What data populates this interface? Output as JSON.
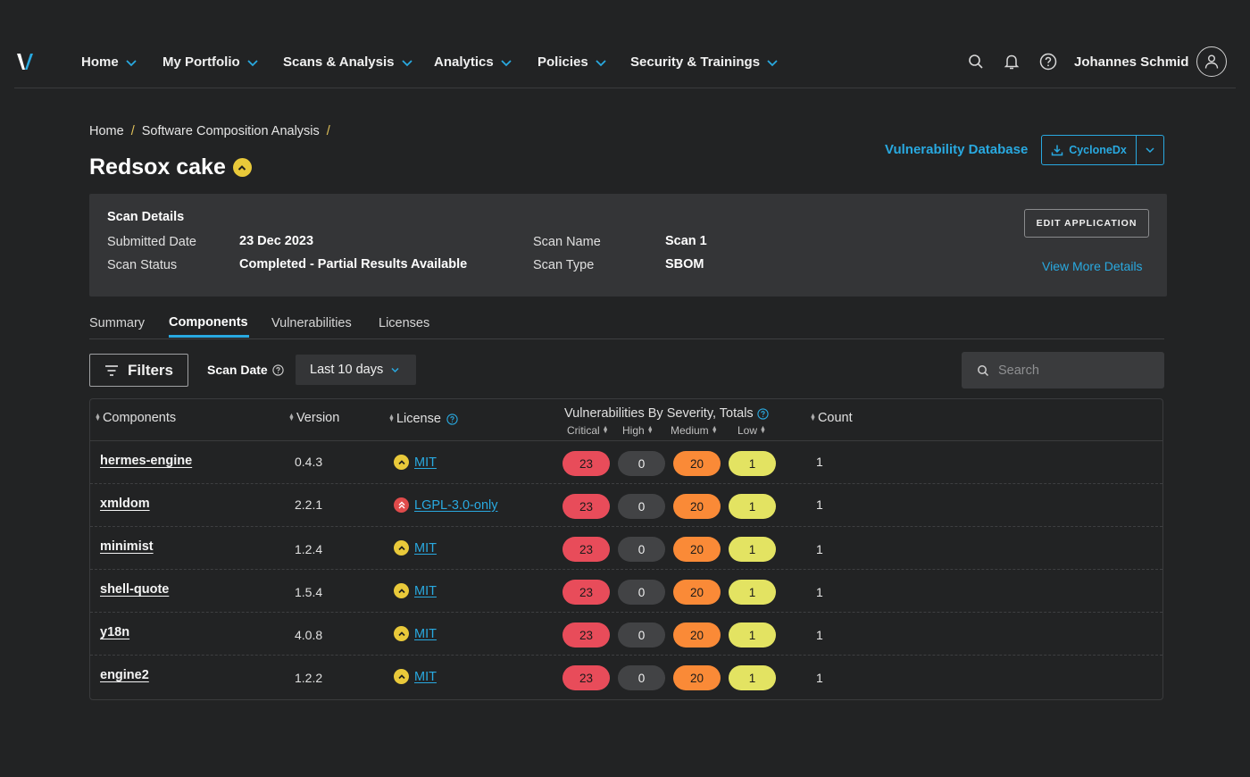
{
  "nav": {
    "items": [
      {
        "label": "Home"
      },
      {
        "label": "My Portfolio"
      },
      {
        "label": "Scans & Analysis"
      },
      {
        "label": "Analytics"
      },
      {
        "label": "Policies"
      },
      {
        "label": "Security & Trainings"
      }
    ],
    "user_name": "Johannes Schmid",
    "accent": "#29a9e0"
  },
  "breadcrumb": {
    "items": [
      "Home",
      "Software Composition Analysis"
    ],
    "separator": "/"
  },
  "page": {
    "title": "Redsox cake",
    "vuln_db_link": "Vulnerability Database",
    "export_label": "CycloneDx"
  },
  "scan": {
    "heading": "Scan Details",
    "submitted_label": "Submitted Date",
    "submitted_value": "23 Dec 2023",
    "status_label": "Scan Status",
    "status_value": "Completed - Partial Results Available",
    "name_label": "Scan Name",
    "name_value": "Scan 1",
    "type_label": "Scan Type",
    "type_value": "SBOM",
    "edit_button": "EDIT APPLICATION",
    "more_link": "View More Details"
  },
  "tabs": [
    "Summary",
    "Components",
    "Vulnerabilities",
    "Licenses"
  ],
  "active_tab": "Components",
  "toolbar": {
    "filters_label": "Filters",
    "scan_date_label": "Scan Date",
    "date_range_value": "Last 10 days",
    "search_placeholder": "Search"
  },
  "table": {
    "headers": {
      "components": "Components",
      "version": "Version",
      "license": "License",
      "severity": "Vulnerabilities By Severity, Totals",
      "critical": "Critical",
      "high": "High",
      "medium": "Medium",
      "low": "Low",
      "count": "Count"
    },
    "rows": [
      {
        "name": "hermes-engine",
        "version": "0.4.3",
        "license": "MIT",
        "license_risk": "medium",
        "critical": "23",
        "high": "0",
        "medium": "20",
        "low": "1",
        "count": "1"
      },
      {
        "name": "xmldom",
        "version": "2.2.1",
        "license": "LGPL-3.0-only",
        "license_risk": "high",
        "critical": "23",
        "high": "0",
        "medium": "20",
        "low": "1",
        "count": "1"
      },
      {
        "name": "minimist",
        "version": "1.2.4",
        "license": "MIT",
        "license_risk": "medium",
        "critical": "23",
        "high": "0",
        "medium": "20",
        "low": "1",
        "count": "1"
      },
      {
        "name": "shell-quote",
        "version": "1.5.4",
        "license": "MIT",
        "license_risk": "medium",
        "critical": "23",
        "high": "0",
        "medium": "20",
        "low": "1",
        "count": "1"
      },
      {
        "name": "y18n",
        "version": "4.0.8",
        "license": "MIT",
        "license_risk": "medium",
        "critical": "23",
        "high": "0",
        "medium": "20",
        "low": "1",
        "count": "1"
      },
      {
        "name": "engine2",
        "version": "1.2.2",
        "license": "MIT",
        "license_risk": "medium",
        "critical": "23",
        "high": "0",
        "medium": "20",
        "low": "1",
        "count": "1"
      }
    ]
  },
  "colors": {
    "critical": "#e84c5a",
    "high": "#424345",
    "medium": "#fa8a37",
    "low": "#e3e362",
    "license_medium": "#e9c93a",
    "license_high": "#e04b4b"
  }
}
